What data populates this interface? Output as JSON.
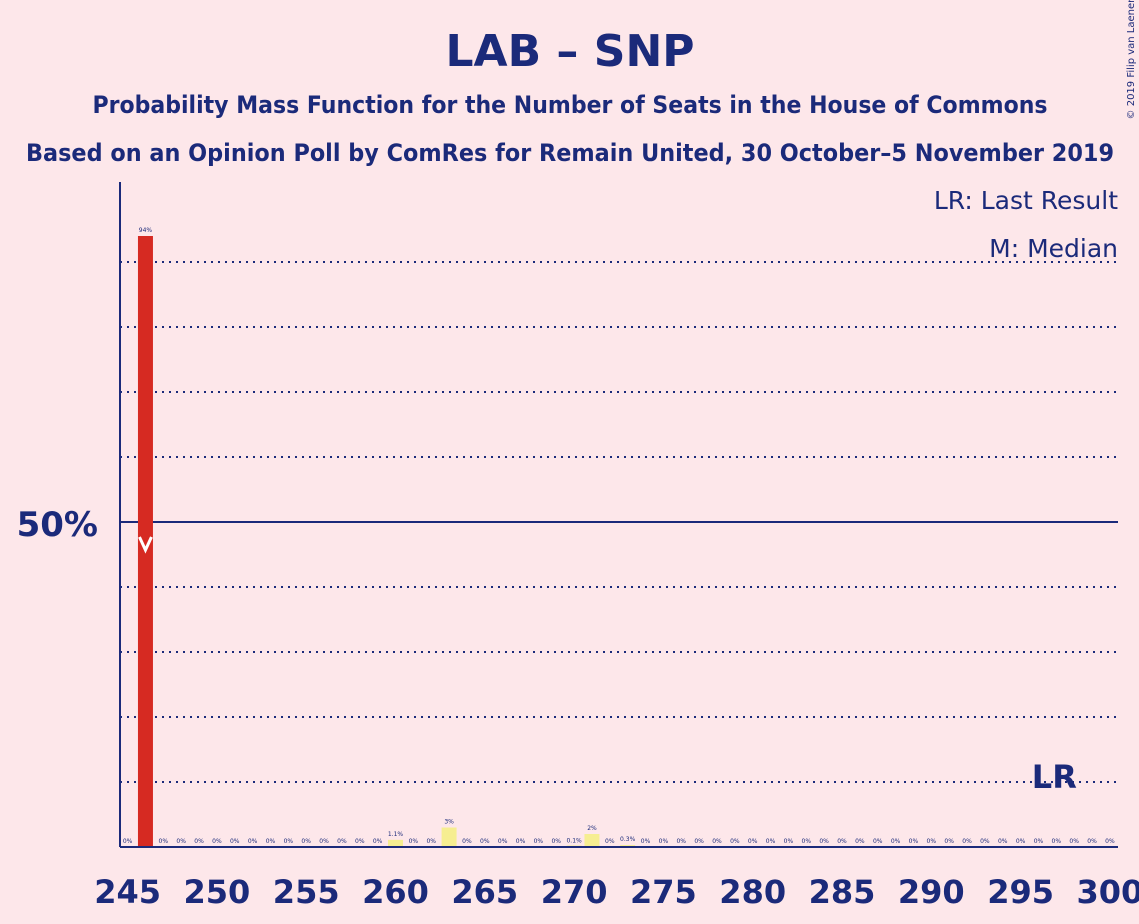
{
  "chart_data": {
    "type": "bar",
    "title": "LAB – SNP",
    "subtitle1": "Probability Mass Function for the Number of Seats in the House of Commons",
    "subtitle2": "Based on an Opinion Poll by ComRes for Remain United, 30 October–5 November 2019",
    "copyright": "© 2019 Filip van Laenen",
    "legend": {
      "lr": "LR: Last Result",
      "median": "M: Median",
      "placement": "top-right"
    },
    "ylabel_50": "50%",
    "lr_label": "LR",
    "lr_seat": 297,
    "median_marker_seat": 246,
    "xlim": [
      245,
      300
    ],
    "ylim": [
      0,
      100
    ],
    "grid": true,
    "x_ticks": [
      "245",
      "250",
      "255",
      "260",
      "265",
      "270",
      "275",
      "280",
      "285",
      "290",
      "295",
      "300"
    ],
    "colors": {
      "median_bar": "#d62a22",
      "other_bar": "#f6ee91",
      "axis": "#1b2a7a",
      "background": "#fde7ea"
    },
    "bars": [
      {
        "x": 245,
        "value": 0,
        "label": "0%"
      },
      {
        "x": 246,
        "value": 94,
        "label": "94%"
      },
      {
        "x": 247,
        "value": 0,
        "label": "0%"
      },
      {
        "x": 248,
        "value": 0,
        "label": "0%"
      },
      {
        "x": 249,
        "value": 0,
        "label": "0%"
      },
      {
        "x": 250,
        "value": 0,
        "label": "0%"
      },
      {
        "x": 251,
        "value": 0,
        "label": "0%"
      },
      {
        "x": 252,
        "value": 0,
        "label": "0%"
      },
      {
        "x": 253,
        "value": 0,
        "label": "0%"
      },
      {
        "x": 254,
        "value": 0,
        "label": "0%"
      },
      {
        "x": 255,
        "value": 0,
        "label": "0%"
      },
      {
        "x": 256,
        "value": 0,
        "label": "0%"
      },
      {
        "x": 257,
        "value": 0,
        "label": "0%"
      },
      {
        "x": 258,
        "value": 0,
        "label": "0%"
      },
      {
        "x": 259,
        "value": 0,
        "label": "0%"
      },
      {
        "x": 260,
        "value": 1.1,
        "label": "1.1%"
      },
      {
        "x": 261,
        "value": 0,
        "label": "0%"
      },
      {
        "x": 262,
        "value": 0,
        "label": "0%"
      },
      {
        "x": 263,
        "value": 3,
        "label": "3%"
      },
      {
        "x": 264,
        "value": 0,
        "label": "0%"
      },
      {
        "x": 265,
        "value": 0,
        "label": "0%"
      },
      {
        "x": 266,
        "value": 0,
        "label": "0%"
      },
      {
        "x": 267,
        "value": 0,
        "label": "0%"
      },
      {
        "x": 268,
        "value": 0,
        "label": "0%"
      },
      {
        "x": 269,
        "value": 0,
        "label": "0%"
      },
      {
        "x": 270,
        "value": 0.1,
        "label": "0.1%"
      },
      {
        "x": 271,
        "value": 2,
        "label": "2%"
      },
      {
        "x": 272,
        "value": 0,
        "label": "0%"
      },
      {
        "x": 273,
        "value": 0.3,
        "label": "0.3%"
      },
      {
        "x": 274,
        "value": 0,
        "label": "0%"
      },
      {
        "x": 275,
        "value": 0,
        "label": "0%"
      },
      {
        "x": 276,
        "value": 0,
        "label": "0%"
      },
      {
        "x": 277,
        "value": 0,
        "label": "0%"
      },
      {
        "x": 278,
        "value": 0,
        "label": "0%"
      },
      {
        "x": 279,
        "value": 0,
        "label": "0%"
      },
      {
        "x": 280,
        "value": 0,
        "label": "0%"
      },
      {
        "x": 281,
        "value": 0,
        "label": "0%"
      },
      {
        "x": 282,
        "value": 0,
        "label": "0%"
      },
      {
        "x": 283,
        "value": 0,
        "label": "0%"
      },
      {
        "x": 284,
        "value": 0,
        "label": "0%"
      },
      {
        "x": 285,
        "value": 0,
        "label": "0%"
      },
      {
        "x": 286,
        "value": 0,
        "label": "0%"
      },
      {
        "x": 287,
        "value": 0,
        "label": "0%"
      },
      {
        "x": 288,
        "value": 0,
        "label": "0%"
      },
      {
        "x": 289,
        "value": 0,
        "label": "0%"
      },
      {
        "x": 290,
        "value": 0,
        "label": "0%"
      },
      {
        "x": 291,
        "value": 0,
        "label": "0%"
      },
      {
        "x": 292,
        "value": 0,
        "label": "0%"
      },
      {
        "x": 293,
        "value": 0,
        "label": "0%"
      },
      {
        "x": 294,
        "value": 0,
        "label": "0%"
      },
      {
        "x": 295,
        "value": 0,
        "label": "0%"
      },
      {
        "x": 296,
        "value": 0,
        "label": "0%"
      },
      {
        "x": 297,
        "value": 0,
        "label": "0%"
      },
      {
        "x": 298,
        "value": 0,
        "label": "0%"
      },
      {
        "x": 299,
        "value": 0,
        "label": "0%"
      },
      {
        "x": 300,
        "value": 0,
        "label": "0%"
      }
    ]
  }
}
